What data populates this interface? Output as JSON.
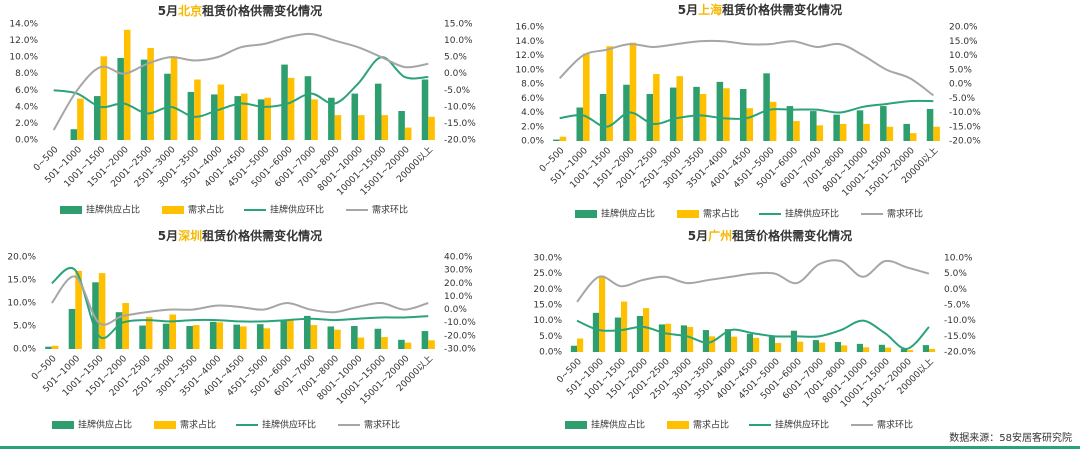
{
  "chart_data": [
    {
      "type": "bar",
      "title_parts": [
        "5月",
        "北京",
        "租赁价格供需变化情况"
      ],
      "categories": [
        "0~500",
        "501~1000",
        "1001~1500",
        "1501~2000",
        "2001~2500",
        "2501~3000",
        "3001~3500",
        "3501~4000",
        "4001~4500",
        "4501~5000",
        "5001~6000",
        "6001~7000",
        "7001~8000",
        "8001~10000",
        "10001~15000",
        "15001~20000",
        "20000以上"
      ],
      "ylim": [
        0,
        14
      ],
      "yticks": [
        {
          "value": 0,
          "label": "0.0%"
        },
        {
          "value": 2,
          "label": "2.0%"
        },
        {
          "value": 4,
          "label": "4.0%"
        },
        {
          "value": 6,
          "label": "6.0%"
        },
        {
          "value": 8,
          "label": "8.0%"
        },
        {
          "value": 10,
          "label": "10.0%"
        },
        {
          "value": 12,
          "label": "12.0%"
        },
        {
          "value": 14,
          "label": "14.0%"
        }
      ],
      "y2lim": [
        -20,
        15
      ],
      "y2ticks": [
        {
          "value": -20,
          "label": "-20.0%"
        },
        {
          "value": -15,
          "label": "-15.0%"
        },
        {
          "value": -10,
          "label": "-10.0%"
        },
        {
          "value": -5,
          "label": "-5.0%"
        },
        {
          "value": 0,
          "label": "0.0%"
        },
        {
          "value": 5,
          "label": "5.0%"
        },
        {
          "value": 10,
          "label": "10.0%"
        },
        {
          "value": 15,
          "label": "15.0%"
        }
      ],
      "series": [
        {
          "name": "挂牌供应占比",
          "type": "bar",
          "color": "#2e9e6e",
          "values": [
            0,
            1.3,
            5.3,
            9.9,
            9.7,
            8.0,
            5.8,
            5.5,
            5.3,
            4.9,
            9.1,
            7.7,
            5.1,
            5.6,
            6.8,
            3.5,
            7.3
          ]
        },
        {
          "name": "需求占比",
          "type": "bar",
          "color": "#ffc000",
          "values": [
            0,
            5.0,
            10.1,
            13.3,
            11.1,
            10.1,
            7.3,
            6.7,
            5.6,
            5.1,
            7.5,
            4.9,
            3.0,
            3.0,
            3.0,
            1.5,
            2.8
          ]
        },
        {
          "name": "挂牌供应环比",
          "type": "line",
          "axis": "y2",
          "color": "#2aa37a",
          "values": [
            -5,
            -6,
            -10,
            -9,
            -12,
            -10,
            -13,
            -11,
            -9,
            -10,
            -9,
            -6,
            -9,
            -3,
            5,
            -1,
            -1
          ]
        },
        {
          "name": "需求环比",
          "type": "line",
          "axis": "y2",
          "color": "#a6a6a6",
          "values": [
            -17,
            -5,
            2,
            0,
            3,
            5,
            4,
            5,
            8,
            9,
            11,
            12,
            10,
            8,
            5,
            2,
            3
          ]
        }
      ]
    },
    {
      "type": "bar",
      "title_parts": [
        "5月",
        "上海",
        "租赁价格供需变化情况"
      ],
      "categories": [
        "0~500",
        "501~1000",
        "1001~1500",
        "1501~2000",
        "2001~2500",
        "2501~3000",
        "3001~3500",
        "3501~4000",
        "4001~4500",
        "4501~5000",
        "5001~6000",
        "6001~7000",
        "7001~8000",
        "8001~10000",
        "10001~15000",
        "15001~20000",
        "20000以上"
      ],
      "ylim": [
        0,
        16
      ],
      "yticks": [
        {
          "value": 0,
          "label": "0.0%"
        },
        {
          "value": 2,
          "label": "2.0%"
        },
        {
          "value": 4,
          "label": "4.0%"
        },
        {
          "value": 6,
          "label": "6.0%"
        },
        {
          "value": 8,
          "label": "8.0%"
        },
        {
          "value": 10,
          "label": "10.0%"
        },
        {
          "value": 12,
          "label": "12.0%"
        },
        {
          "value": 14,
          "label": "14.0%"
        },
        {
          "value": 16,
          "label": "16.0%"
        }
      ],
      "y2lim": [
        -20,
        20
      ],
      "y2ticks": [
        {
          "value": -20,
          "label": "-20.0%"
        },
        {
          "value": -15,
          "label": "-15.0%"
        },
        {
          "value": -10,
          "label": "-10.0%"
        },
        {
          "value": -5,
          "label": "-5.0%"
        },
        {
          "value": 0,
          "label": "0.0%"
        },
        {
          "value": 5,
          "label": "5.0%"
        },
        {
          "value": 10,
          "label": "10.0%"
        },
        {
          "value": 15,
          "label": "15.0%"
        },
        {
          "value": 20,
          "label": "20.0%"
        }
      ],
      "series": [
        {
          "name": "挂牌供应占比",
          "type": "bar",
          "color": "#2e9e6e",
          "values": [
            0.2,
            4.7,
            6.6,
            7.9,
            6.6,
            7.5,
            7.6,
            8.3,
            7.3,
            9.5,
            4.9,
            4.2,
            3.7,
            4.3,
            4.9,
            2.4,
            4.5
          ]
        },
        {
          "name": "需求占比",
          "type": "bar",
          "color": "#ffc000",
          "values": [
            0.6,
            12.3,
            13.3,
            13.8,
            9.4,
            9.1,
            6.6,
            7.4,
            4.6,
            5.5,
            2.8,
            2.2,
            2.4,
            2.4,
            2.0,
            1.1,
            2.0
          ]
        },
        {
          "name": "挂牌供应环比",
          "type": "line",
          "axis": "y2",
          "color": "#2aa37a",
          "values": [
            -12,
            -11,
            -15,
            -10,
            -14,
            -12,
            -11,
            -12,
            -12,
            -9,
            -9,
            -9,
            -10,
            -8,
            -7,
            -6,
            -6
          ]
        },
        {
          "name": "需求环比",
          "type": "line",
          "axis": "y2",
          "color": "#a6a6a6",
          "values": [
            2,
            10,
            12,
            14,
            13,
            14,
            15,
            15,
            14,
            14,
            15,
            13,
            14,
            10,
            5,
            2,
            -4
          ]
        }
      ]
    },
    {
      "type": "bar",
      "title_parts": [
        "5月",
        "深圳",
        "租赁价格供需变化情况"
      ],
      "categories": [
        "0~500",
        "501~1000",
        "1001~1500",
        "1501~2000",
        "2001~2500",
        "2501~3000",
        "3001~3500",
        "3501~4000",
        "4001~4500",
        "4501~5000",
        "5001~6000",
        "6001~7000",
        "7001~8000",
        "8001~10000",
        "10001~15000",
        "15001~20000",
        "20000以上"
      ],
      "ylim": [
        0,
        20
      ],
      "yticks": [
        {
          "value": 0,
          "label": "0.0%"
        },
        {
          "value": 5,
          "label": "5.0%"
        },
        {
          "value": 10,
          "label": "10.0%"
        },
        {
          "value": 15,
          "label": "15.0%"
        },
        {
          "value": 20,
          "label": "20.0%"
        }
      ],
      "y2lim": [
        -30,
        40
      ],
      "y2ticks": [
        {
          "value": -30,
          "label": "-30.0%"
        },
        {
          "value": -20,
          "label": "-20.0%"
        },
        {
          "value": -10,
          "label": "-10.0%"
        },
        {
          "value": 0,
          "label": "0.0%"
        },
        {
          "value": 10,
          "label": "10.0%"
        },
        {
          "value": 20,
          "label": "20.0%"
        },
        {
          "value": 30,
          "label": "30.0%"
        },
        {
          "value": 40,
          "label": "40.0%"
        }
      ],
      "series": [
        {
          "name": "挂牌供应占比",
          "type": "bar",
          "color": "#2e9e6e",
          "values": [
            0.5,
            8.7,
            14.5,
            8.0,
            5.1,
            5.5,
            5.0,
            5.9,
            5.3,
            5.4,
            6.2,
            7.2,
            4.9,
            5.0,
            4.4,
            2.0,
            3.9
          ]
        },
        {
          "name": "需求占比",
          "type": "bar",
          "color": "#ffc000",
          "values": [
            0.7,
            17.0,
            16.5,
            10.0,
            7.0,
            7.5,
            5.2,
            5.8,
            4.9,
            4.5,
            6.3,
            5.2,
            4.2,
            2.5,
            2.6,
            1.4,
            1.9
          ]
        },
        {
          "name": "挂牌供应环比",
          "type": "line",
          "axis": "y2",
          "color": "#2aa37a",
          "values": [
            20,
            30,
            -20,
            -10,
            -8,
            -9,
            -8,
            -8,
            -9,
            -9,
            -8,
            -7,
            -8,
            -7,
            -6,
            -6,
            -5
          ]
        },
        {
          "name": "需求环比",
          "type": "line",
          "axis": "y2",
          "color": "#a6a6a6",
          "values": [
            5,
            25,
            -10,
            -5,
            -2,
            0,
            0,
            3,
            2,
            0,
            5,
            0,
            -2,
            2,
            5,
            0,
            5
          ]
        }
      ]
    },
    {
      "type": "bar",
      "title_parts": [
        "5月",
        "广州",
        "租赁价格供需变化情况"
      ],
      "categories": [
        "0~500",
        "501~1000",
        "1001~1500",
        "1501~2000",
        "2001~2500",
        "2501~3000",
        "3001~3500",
        "3501~4000",
        "4001~4500",
        "4501~5000",
        "5001~6000",
        "6001~7000",
        "7001~8000",
        "8001~10000",
        "10001~15000",
        "15001~20000",
        "20000以上"
      ],
      "ylim": [
        0,
        30
      ],
      "yticks": [
        {
          "value": 0,
          "label": "0.0%"
        },
        {
          "value": 5,
          "label": "5.0%"
        },
        {
          "value": 10,
          "label": "10.0%"
        },
        {
          "value": 15,
          "label": "15.0%"
        },
        {
          "value": 20,
          "label": "20.0%"
        },
        {
          "value": 25,
          "label": "25.0%"
        },
        {
          "value": 30,
          "label": "30.0%"
        }
      ],
      "y2lim": [
        -20,
        10
      ],
      "y2ticks": [
        {
          "value": -20,
          "label": "-20.0%"
        },
        {
          "value": -15,
          "label": "-15.0%"
        },
        {
          "value": -10,
          "label": "-10.0%"
        },
        {
          "value": -5,
          "label": "-5.0%"
        },
        {
          "value": 0,
          "label": "0.0%"
        },
        {
          "value": 5,
          "label": "5.0%"
        },
        {
          "value": 10,
          "label": "10.0%"
        }
      ],
      "series": [
        {
          "name": "挂牌供应占比",
          "type": "bar",
          "color": "#2e9e6e",
          "values": [
            2.0,
            12.5,
            11.0,
            11.5,
            8.8,
            8.5,
            7.0,
            7.3,
            5.8,
            5.0,
            6.8,
            3.8,
            3.2,
            2.6,
            2.3,
            1.0,
            2.2
          ]
        },
        {
          "name": "需求占比",
          "type": "bar",
          "color": "#ffc000",
          "values": [
            4.3,
            24.3,
            16.1,
            14.0,
            9.0,
            8.0,
            5.0,
            4.9,
            4.5,
            2.9,
            3.3,
            3.0,
            2.1,
            1.5,
            1.4,
            0.6,
            1.0
          ]
        },
        {
          "name": "挂牌供应环比",
          "type": "line",
          "axis": "y2",
          "color": "#2aa37a",
          "values": [
            -10,
            -13,
            -13,
            -12,
            -14,
            -15,
            -17,
            -13,
            -14,
            -15,
            -15,
            -15,
            -13,
            -10,
            -14,
            -19,
            -12
          ]
        },
        {
          "name": "需求环比",
          "type": "line",
          "axis": "y2",
          "color": "#a6a6a6",
          "values": [
            -4,
            4,
            1,
            3,
            4,
            2,
            3,
            4,
            5,
            5,
            2,
            8,
            9,
            4,
            9,
            7,
            5
          ]
        }
      ]
    }
  ],
  "source": "数据来源：58安居客研究院"
}
